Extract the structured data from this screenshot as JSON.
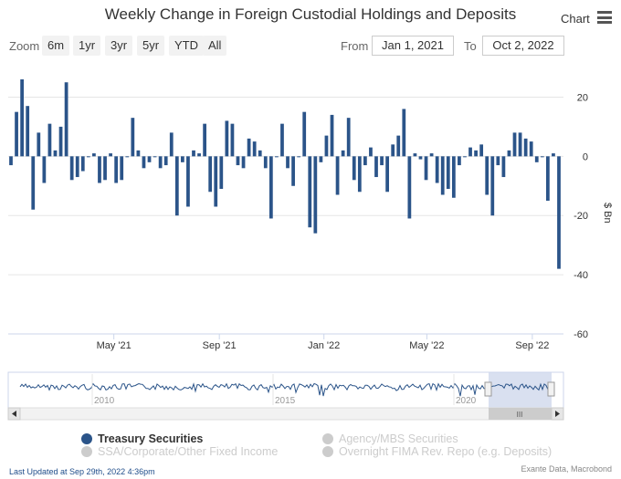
{
  "title": "Weekly Change in Foreign Custodial Holdings and Deposits",
  "menu": {
    "label": "Chart",
    "icon": "hamburger-menu-icon"
  },
  "zoom": {
    "label": "Zoom",
    "buttons": [
      "6m",
      "1yr",
      "3yr",
      "5yr",
      "YTD",
      "All"
    ]
  },
  "range": {
    "from_label": "From",
    "from_value": "Jan 1, 2021",
    "to_label": "To",
    "to_value": "Oct 2, 2022"
  },
  "navigator": {
    "year_labels": [
      "2010",
      "2015",
      "2020"
    ],
    "scroll_grip": "III"
  },
  "legend": [
    {
      "name": "Treasury Securities",
      "color": "#2b5489",
      "active": true
    },
    {
      "name": "Agency/MBS Securities",
      "color": "#cccccc",
      "active": false
    },
    {
      "name": "SSA/Corporate/Other Fixed Income",
      "color": "#cccccc",
      "active": false
    },
    {
      "name": "Overnight FIMA Rev. Repo (e.g. Deposits)",
      "color": "#cccccc",
      "active": false
    }
  ],
  "footer": {
    "updated": "Last Updated at Sep 29th, 2022 4:36pm",
    "source": "Exante Data, Macrobond"
  },
  "chart_data": {
    "type": "bar",
    "ylabel": "$ Bn",
    "ylim": [
      -60,
      30
    ],
    "yticks": [
      20,
      0,
      -20,
      -40,
      -60
    ],
    "x_tick_labels": [
      "May '21",
      "Sep '21",
      "Jan '22",
      "May '22",
      "Sep '22"
    ],
    "x_start": "2021-01-01",
    "x_end": "2022-10-02",
    "grid": true,
    "bar_color": "#2b5489",
    "series": [
      {
        "name": "Treasury Securities",
        "values": [
          -3,
          15,
          26,
          17,
          -18,
          8,
          -9,
          11,
          2,
          10,
          25,
          -8,
          -7,
          -5,
          0,
          1,
          -9,
          -8,
          1,
          -9,
          -8,
          0,
          13,
          2,
          -4,
          -2,
          0,
          -4,
          -3,
          8,
          -20,
          -2,
          -17,
          2,
          1,
          11,
          -12,
          -17,
          -11,
          12,
          11,
          -3,
          -4,
          6,
          5,
          2,
          -4,
          -21,
          0,
          11,
          -4,
          -10,
          0,
          15,
          -24,
          -26,
          -2,
          7,
          14,
          -13,
          2,
          13,
          -8,
          -12,
          -3,
          3,
          -7,
          -3,
          -12,
          4,
          7,
          16,
          -21,
          1,
          -1,
          -8,
          1,
          -9,
          -13,
          -11,
          -14,
          -3,
          0,
          3,
          2,
          4,
          -13,
          -20,
          -3,
          -7,
          2,
          8,
          8,
          6,
          5,
          -2,
          0,
          -15,
          1,
          -38
        ]
      }
    ]
  }
}
